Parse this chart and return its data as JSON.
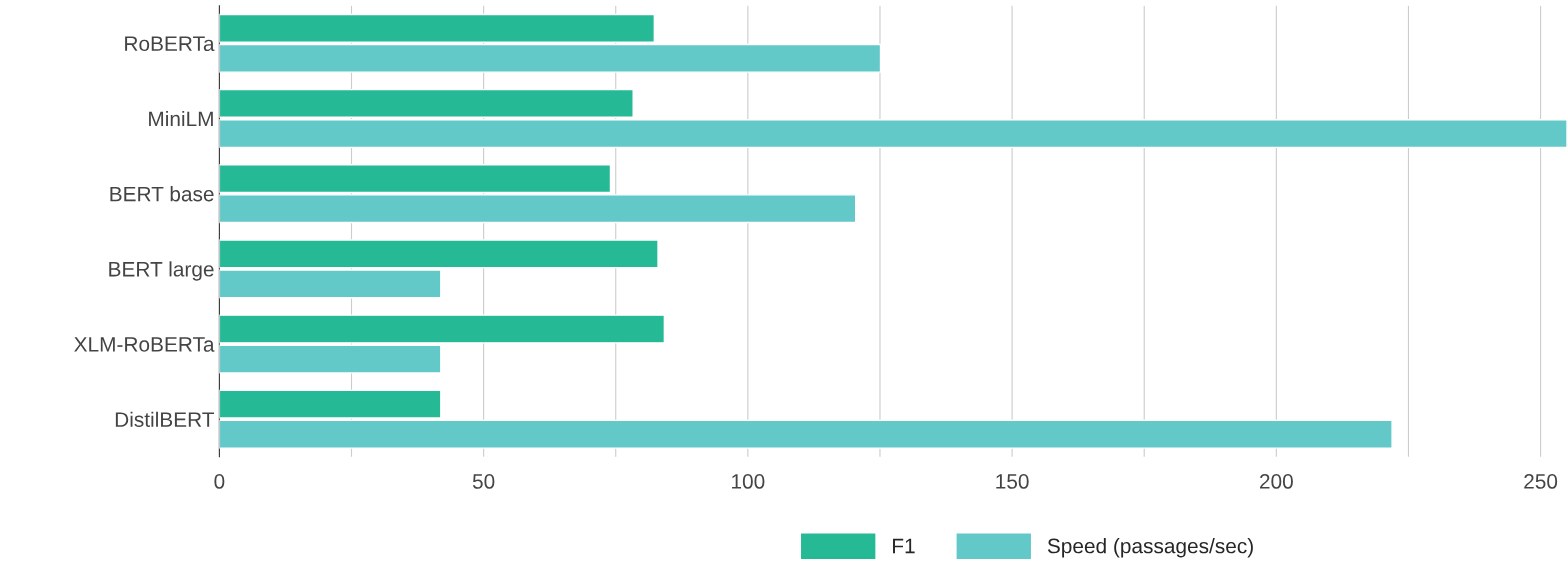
{
  "chart_data": {
    "type": "bar",
    "orientation": "horizontal",
    "categories": [
      "RoBERTa",
      "MiniLM",
      "BERT base",
      "BERT large",
      "XLM-RoBERTa",
      "DistilBERT"
    ],
    "series": [
      {
        "name": "F1",
        "color": "#25b995",
        "values": [
          82.3,
          78.3,
          74,
          83,
          84.2,
          41.9
        ]
      },
      {
        "name": "Speed (passages/sec)",
        "color": "#63c8c8",
        "values": [
          125.1,
          255,
          120.4,
          41.9,
          41.9,
          221.9
        ]
      }
    ],
    "xlim": [
      0,
      255
    ],
    "xticks": [
      0,
      {
        "value": 25,
        "label": null
      },
      50,
      {
        "value": 75,
        "label": null
      },
      100,
      {
        "value": 125,
        "label": null
      },
      150,
      {
        "value": 175,
        "label": null
      },
      200,
      {
        "value": 225,
        "label": null
      },
      250
    ],
    "grid": "x",
    "legend": "bottom"
  }
}
